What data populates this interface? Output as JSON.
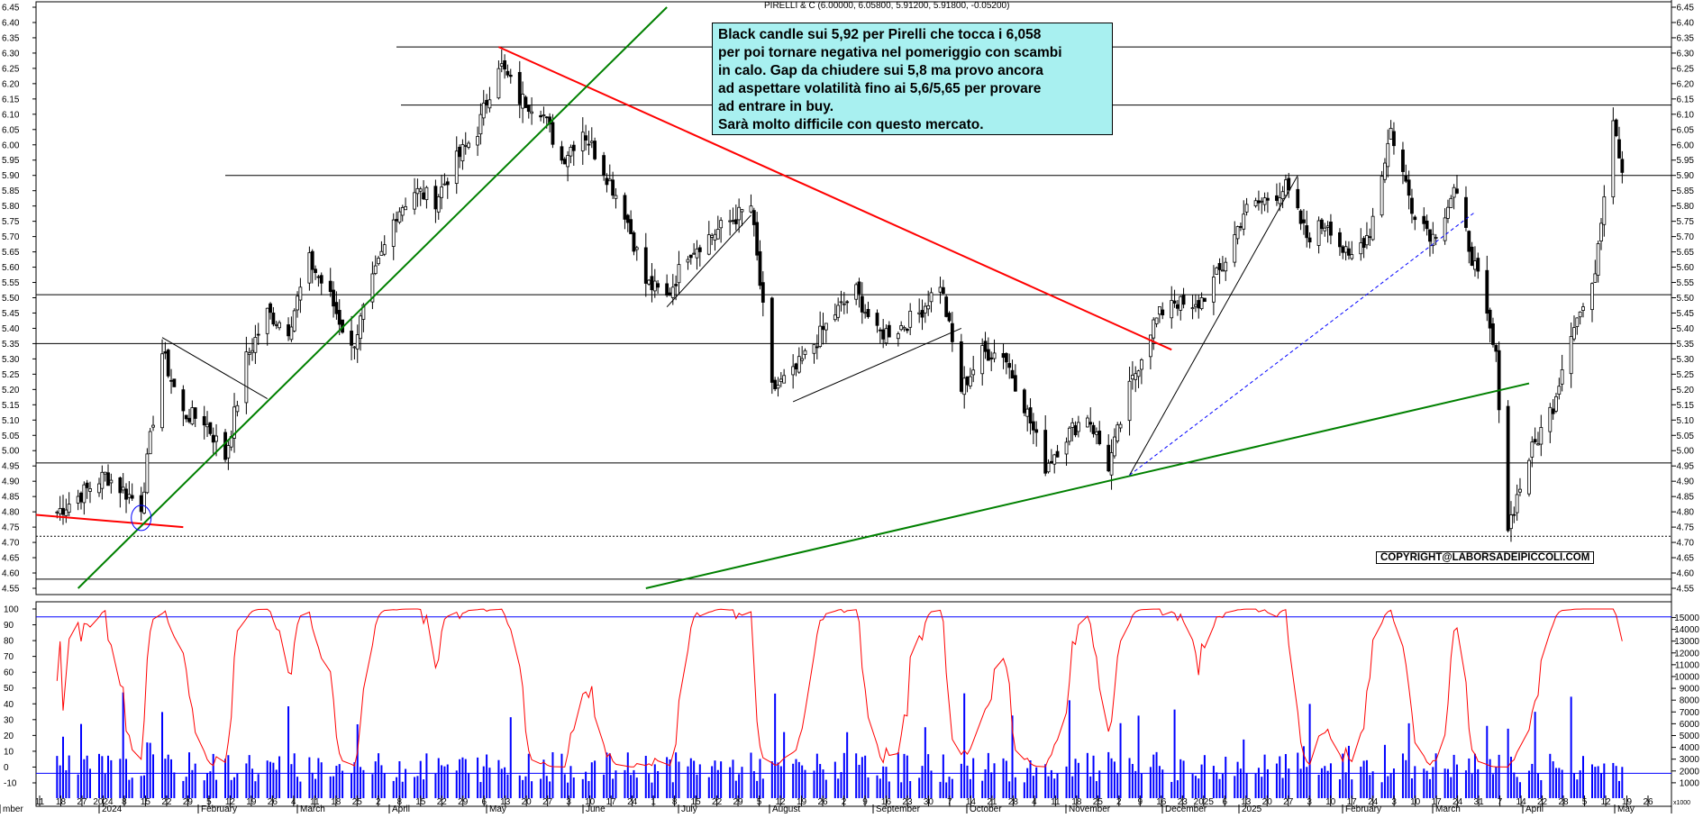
{
  "header": {
    "instrument": "PIRELLI & C (6.00000, 6.05800, 5.91200, 5.91800, -0.05200)"
  },
  "annotation": {
    "lines": [
      "Black candle sui 5,92 per Pirelli che tocca i 6,058",
      "per poi tornare negativa nel pomeriggio con scambi",
      "in calo. Gap da chiudere sui 5,8 ma provo ancora",
      "ad aspettare volatilità fino ai 5,6/5,65 per provare",
      "ad entrare in buy.",
      "Sarà molto difficile con questo mercato."
    ]
  },
  "copyright": "COPYRIGHT@LABORSADEIPICCOLI.COM",
  "colors": {
    "up_candle": "#ffffff",
    "down_candle": "#000000",
    "oscillator": "#ff0000",
    "volume": "#0000ff",
    "trend_red": "#ff0000",
    "trend_green": "#008000",
    "level_line": "#000000"
  },
  "chart_data": [
    {
      "type": "candlestick",
      "ylim": [
        4.55,
        6.45
      ],
      "y_ticks": [
        "6.45",
        "6.40",
        "6.35",
        "6.30",
        "6.25",
        "6.20",
        "6.15",
        "6.10",
        "6.05",
        "6.00",
        "5.95",
        "5.90",
        "5.85",
        "5.80",
        "5.75",
        "5.70",
        "5.65",
        "5.60",
        "5.55",
        "5.50",
        "5.45",
        "5.40",
        "5.35",
        "5.30",
        "5.25",
        "5.20",
        "5.15",
        "5.10",
        "5.05",
        "5.00",
        "4.95",
        "4.90",
        "4.85",
        "4.80",
        "4.75",
        "4.70",
        "4.65",
        "4.60",
        "4.55"
      ],
      "horizontal_levels": [
        6.32,
        6.13,
        5.9,
        5.51,
        5.35,
        4.96,
        4.58
      ],
      "dotted_levels": [
        4.72
      ],
      "close_path": [
        [
          "2023-12-11",
          4.8
        ],
        [
          "2023-12-18",
          4.85
        ],
        [
          "2023-12-27",
          4.92
        ],
        [
          "2024-01-08",
          4.82
        ],
        [
          "2024-01-15",
          5.32
        ],
        [
          "2024-01-22",
          5.12
        ],
        [
          "2024-01-29",
          5.1
        ],
        [
          "2024-02-05",
          4.98
        ],
        [
          "2024-02-12",
          5.3
        ],
        [
          "2024-02-19",
          5.45
        ],
        [
          "2024-02-26",
          5.4
        ],
        [
          "2024-03-04",
          5.62
        ],
        [
          "2024-03-11",
          5.5
        ],
        [
          "2024-03-18",
          5.33
        ],
        [
          "2024-03-25",
          5.55
        ],
        [
          "2024-04-02",
          5.78
        ],
        [
          "2024-04-08",
          5.85
        ],
        [
          "2024-04-15",
          5.82
        ],
        [
          "2024-04-22",
          5.95
        ],
        [
          "2024-04-29",
          6.05
        ],
        [
          "2024-05-06",
          6.27
        ],
        [
          "2024-05-13",
          6.15
        ],
        [
          "2024-05-20",
          6.12
        ],
        [
          "2024-05-27",
          5.95
        ],
        [
          "2024-06-03",
          6.05
        ],
        [
          "2024-06-10",
          5.92
        ],
        [
          "2024-06-17",
          5.78
        ],
        [
          "2024-06-24",
          5.55
        ],
        [
          "2024-07-01",
          5.5
        ],
        [
          "2024-07-08",
          5.65
        ],
        [
          "2024-07-15",
          5.7
        ],
        [
          "2024-07-22",
          5.75
        ],
        [
          "2024-07-29",
          5.8
        ],
        [
          "2024-08-05",
          5.2
        ],
        [
          "2024-08-12",
          5.25
        ],
        [
          "2024-08-19",
          5.35
        ],
        [
          "2024-08-26",
          5.45
        ],
        [
          "2024-09-02",
          5.52
        ],
        [
          "2024-09-09",
          5.38
        ],
        [
          "2024-09-16",
          5.4
        ],
        [
          "2024-09-23",
          5.45
        ],
        [
          "2024-09-30",
          5.55
        ],
        [
          "2024-10-07",
          5.2
        ],
        [
          "2024-10-14",
          5.32
        ],
        [
          "2024-10-21",
          5.32
        ],
        [
          "2024-10-28",
          5.15
        ],
        [
          "2024-11-04",
          4.95
        ],
        [
          "2024-11-11",
          5.05
        ],
        [
          "2024-11-18",
          5.12
        ],
        [
          "2024-11-25",
          4.95
        ],
        [
          "2024-12-02",
          5.2
        ],
        [
          "2024-12-09",
          5.4
        ],
        [
          "2024-12-16",
          5.5
        ],
        [
          "2024-12-23",
          5.45
        ],
        [
          "2025-01-02",
          5.6
        ],
        [
          "2025-01-09",
          5.78
        ],
        [
          "2025-01-16",
          5.82
        ],
        [
          "2025-01-23",
          5.86
        ],
        [
          "2025-01-30",
          5.7
        ],
        [
          "2025-02-06",
          5.75
        ],
        [
          "2025-02-13",
          5.62
        ],
        [
          "2025-02-20",
          5.72
        ],
        [
          "2025-02-27",
          6.05
        ],
        [
          "2025-03-06",
          5.8
        ],
        [
          "2025-03-13",
          5.7
        ],
        [
          "2025-03-20",
          5.85
        ],
        [
          "2025-03-27",
          5.6
        ],
        [
          "2025-04-03",
          5.3
        ],
        [
          "2025-04-07",
          4.75
        ],
        [
          "2025-04-14",
          4.98
        ],
        [
          "2025-04-22",
          5.15
        ],
        [
          "2025-04-28",
          5.4
        ],
        [
          "2025-05-05",
          5.52
        ],
        [
          "2025-05-12",
          6.1
        ],
        [
          "2025-05-15",
          5.92
        ]
      ],
      "x_ticks": [
        "11",
        "18",
        "27",
        "2024",
        "8",
        "15",
        "22",
        "29",
        "5",
        "12",
        "19",
        "26",
        "4",
        "11",
        "18",
        "25",
        "2",
        "8",
        "15",
        "22",
        "29",
        "6",
        "13",
        "20",
        "27",
        "3",
        "10",
        "17",
        "24",
        "1",
        "8",
        "15",
        "22",
        "29",
        "5",
        "12",
        "19",
        "26",
        "2",
        "9",
        "16",
        "23",
        "30",
        "7",
        "14",
        "21",
        "28",
        "4",
        "11",
        "18",
        "25",
        "2",
        "9",
        "16",
        "23",
        "2025",
        "6",
        "13",
        "20",
        "27",
        "3",
        "10",
        "17",
        "24",
        "3",
        "10",
        "17",
        "24",
        "31",
        "7",
        "14",
        "22",
        "28",
        "5",
        "12",
        "19",
        "26"
      ],
      "month_labels": [
        "mber",
        "2024",
        "February",
        "March",
        "April",
        "May",
        "June",
        "July",
        "August",
        "September",
        "October",
        "November",
        "December",
        "2025",
        "February",
        "March",
        "April",
        "May"
      ],
      "trendlines": [
        {
          "color": "red",
          "from": [
            "2024-05-06",
            6.32
          ],
          "to": [
            "2024-12-16",
            5.33
          ]
        },
        {
          "color": "red",
          "from": [
            "2023-12-04",
            4.79
          ],
          "to": [
            "2024-01-22",
            4.75
          ]
        },
        {
          "color": "green",
          "from": [
            "2023-12-18",
            4.55
          ],
          "to": [
            "2024-07-01",
            6.45
          ]
        },
        {
          "color": "green",
          "from": [
            "2024-06-24",
            4.55
          ],
          "to": [
            "2025-04-14",
            5.22
          ]
        },
        {
          "color": "black",
          "from": [
            "2024-01-15",
            5.37
          ],
          "to": [
            "2024-02-19",
            5.17
          ]
        },
        {
          "color": "black",
          "from": [
            "2024-07-01",
            5.47
          ],
          "to": [
            "2024-07-29",
            5.77
          ]
        },
        {
          "color": "black",
          "from": [
            "2024-08-12",
            5.16
          ],
          "to": [
            "2024-10-07",
            5.4
          ]
        },
        {
          "color": "black",
          "from": [
            "2024-12-02",
            4.92
          ],
          "to": [
            "2025-01-27",
            5.9
          ]
        },
        {
          "color": "blue-dashed",
          "from": [
            "2024-12-02",
            4.92
          ],
          "to": [
            "2025-03-27",
            5.78
          ]
        }
      ]
    },
    {
      "type": "line",
      "name": "oscillator",
      "ylim": [
        -10,
        100
      ],
      "y_ticks": [
        "100",
        "90",
        "80",
        "70",
        "60",
        "50",
        "40",
        "30",
        "20",
        "10",
        "0",
        "-10"
      ],
      "reference_level": 95
    },
    {
      "type": "bar",
      "name": "volume",
      "ylim": [
        0,
        15500
      ],
      "y_ticks": [
        "15000",
        "14000",
        "13000",
        "12000",
        "11000",
        "10000",
        "9000",
        "8000",
        "7000",
        "6000",
        "5000",
        "4000",
        "3000",
        "2000",
        "1000"
      ],
      "axis_label": "x1000",
      "reference_level": 1800
    }
  ]
}
